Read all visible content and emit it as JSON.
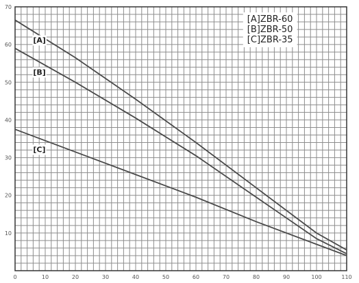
{
  "chart_data": {
    "type": "line",
    "title": "",
    "xlabel": "",
    "ylabel": "",
    "xlim": [
      0,
      110
    ],
    "ylim": [
      0,
      70
    ],
    "x_ticks": [
      0,
      10,
      20,
      30,
      40,
      50,
      60,
      70,
      80,
      90,
      100,
      110
    ],
    "y_ticks": [
      10,
      20,
      30,
      40,
      50,
      60,
      70
    ],
    "x_tick_labels": [
      "0",
      "10",
      "20",
      "30",
      "40",
      "50",
      "60",
      "70",
      "80",
      "90",
      "100",
      "110"
    ],
    "y_tick_labels": [
      "10",
      "20",
      "30",
      "40",
      "50",
      "60",
      "70"
    ],
    "grid": true,
    "grid_minor_step": 2,
    "legend_position": "top-right",
    "legend": [
      "[A]ZBR-60",
      "[B]ZBR-50",
      "[C]ZBR-35"
    ],
    "series": [
      {
        "name": "[A]",
        "x": [
          0,
          20,
          40,
          60,
          80,
          100,
          110
        ],
        "y": [
          66.5,
          56.5,
          45.5,
          34,
          22,
          10,
          5.5
        ]
      },
      {
        "name": "[B]",
        "x": [
          0,
          20,
          40,
          60,
          80,
          100,
          110
        ],
        "y": [
          59,
          50,
          40.5,
          30.5,
          19.5,
          8.5,
          4.5
        ]
      },
      {
        "name": "[C]",
        "x": [
          0,
          20,
          40,
          60,
          80,
          100,
          110
        ],
        "y": [
          37.5,
          31.5,
          25.5,
          19.5,
          13,
          7,
          4
        ]
      }
    ],
    "series_label_positions": [
      {
        "x": 6,
        "y": 61
      },
      {
        "x": 6,
        "y": 52.5
      },
      {
        "x": 6,
        "y": 32
      }
    ],
    "colors": {
      "line": "#4a4a4a",
      "grid": "#8c8c8c",
      "axis": "#333333"
    }
  }
}
